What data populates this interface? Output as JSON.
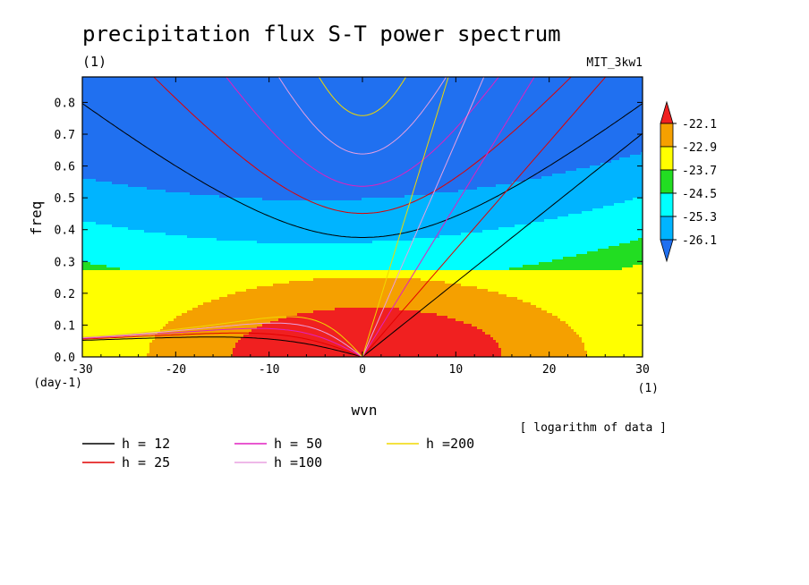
{
  "chart_data": {
    "type": "heatmap",
    "title": "precipitation flux S-T power spectrum",
    "subtitle_left": "(1)",
    "subtitle_right": "MIT_3kw1",
    "xlabel": "wvn",
    "ylabel": "freq",
    "x_unit": "(1)",
    "y_unit": "(day-1)",
    "note": "[ logarithm of data ]",
    "xlim": [
      -30,
      30
    ],
    "ylim": [
      0,
      0.88
    ],
    "x_ticks": [
      -30,
      -20,
      -10,
      0,
      10,
      20,
      30
    ],
    "x_tick_labels": [
      "-30",
      "-20",
      "-10",
      "0",
      "10",
      "20",
      "30"
    ],
    "y_ticks": [
      0,
      0.1,
      0.2,
      0.3,
      0.4,
      0.5,
      0.6,
      0.7,
      0.8
    ],
    "y_tick_labels": [
      "0.0",
      "0.1",
      "0.2",
      "0.3",
      "0.4",
      "0.5",
      "0.6",
      "0.7",
      "0.8"
    ],
    "colorbar": {
      "levels": [
        "-22.1",
        "-22.9",
        "-23.7",
        "-24.5",
        "-25.3",
        "-26.1"
      ],
      "colors": [
        "#f02020",
        "#f5a000",
        "#ffff00",
        "#22dd22",
        "#00ffff",
        "#00b4ff",
        "#2070f0"
      ]
    },
    "band_colors": [
      "#2070f0",
      "#00b4ff",
      "#00ffff",
      "#22dd22",
      "#ffff00",
      "#f5a000",
      "#f02020"
    ],
    "dispersion_curves": [
      {
        "label": "h = 12",
        "h": 12,
        "color": "#000000"
      },
      {
        "label": "h = 25",
        "h": 25,
        "color": "#e00000"
      },
      {
        "label": "h = 50",
        "h": 50,
        "color": "#e020c0"
      },
      {
        "label": "h =100",
        "h": 100,
        "color": "#e8a0e0"
      },
      {
        "label": "h =200",
        "h": 200,
        "color": "#f0d800"
      }
    ]
  }
}
